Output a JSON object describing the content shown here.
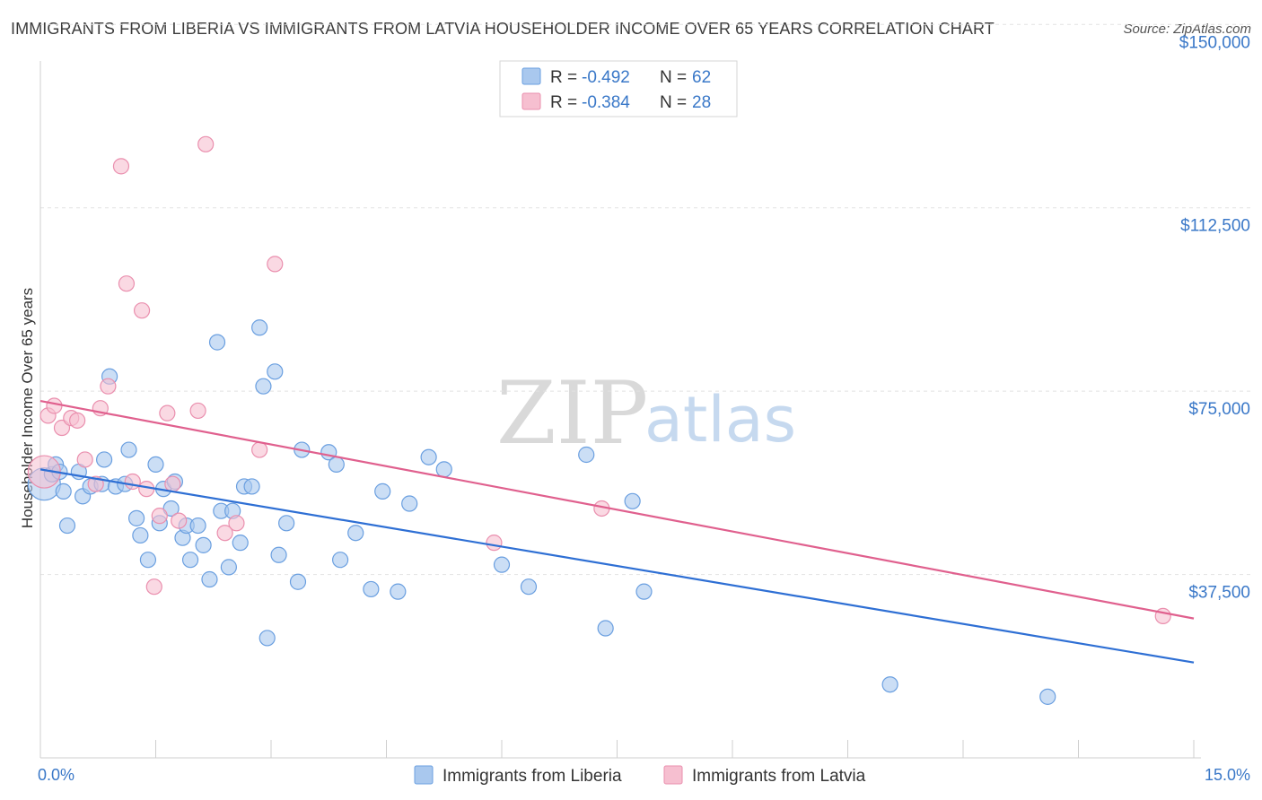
{
  "title": "IMMIGRANTS FROM LIBERIA VS IMMIGRANTS FROM LATVIA HOUSEHOLDER INCOME OVER 65 YEARS CORRELATION CHART",
  "source": "Source: ZipAtlas.com",
  "watermark": {
    "zip": "ZIP",
    "atlas": "atlas"
  },
  "legend": {
    "r_label": "R =",
    "n_label": "N =",
    "liberia": {
      "r": "-0.492",
      "n": "62"
    },
    "latvia": {
      "r": "-0.384",
      "n": "28"
    }
  },
  "colors": {
    "liberia_fill": "#a9c8ee",
    "liberia_stroke": "#6a9fe0",
    "liberia_line": "#2e6fd4",
    "latvia_fill": "#f6bfd0",
    "latvia_stroke": "#ea8fae",
    "latvia_line": "#e0608e",
    "grid": "#e2e2e2",
    "axis_label": "#3a78c8"
  },
  "chart_data": {
    "type": "scatter",
    "title": "IMMIGRANTS FROM LIBERIA VS IMMIGRANTS FROM LATVIA HOUSEHOLDER INCOME OVER 65 YEARS CORRELATION CHART",
    "xlabel": "",
    "ylabel": "Householder Income Over 65 years",
    "xlim": [
      0,
      15
    ],
    "ylim": [
      0,
      155000
    ],
    "x_tick_labels": [
      {
        "value": 0,
        "label": "0.0%"
      },
      {
        "value": 15,
        "label": "15.0%"
      }
    ],
    "y_ticks": [
      {
        "value": 37500,
        "label": "$37,500"
      },
      {
        "value": 75000,
        "label": "$75,000"
      },
      {
        "value": 112500,
        "label": "$112,500"
      },
      {
        "value": 150000,
        "label": "$150,000"
      }
    ],
    "legend_position": "top-center",
    "series": [
      {
        "name": "Immigrants from Liberia",
        "key": "liberia",
        "trend": {
          "x0": 0,
          "y0": 59000,
          "x1": 15,
          "y1": 19500
        },
        "points": [
          {
            "x": 0.05,
            "y": 56000,
            "big": true
          },
          {
            "x": 0.15,
            "y": 58000
          },
          {
            "x": 0.2,
            "y": 60000
          },
          {
            "x": 0.25,
            "y": 58500
          },
          {
            "x": 0.3,
            "y": 54500
          },
          {
            "x": 0.35,
            "y": 47500
          },
          {
            "x": 0.5,
            "y": 58500
          },
          {
            "x": 0.55,
            "y": 53500
          },
          {
            "x": 0.65,
            "y": 55500
          },
          {
            "x": 0.8,
            "y": 56000
          },
          {
            "x": 0.83,
            "y": 61000
          },
          {
            "x": 0.9,
            "y": 78000
          },
          {
            "x": 0.98,
            "y": 55500
          },
          {
            "x": 1.1,
            "y": 56000
          },
          {
            "x": 1.15,
            "y": 63000
          },
          {
            "x": 1.25,
            "y": 49000
          },
          {
            "x": 1.3,
            "y": 45500
          },
          {
            "x": 1.4,
            "y": 40500
          },
          {
            "x": 1.5,
            "y": 60000
          },
          {
            "x": 1.55,
            "y": 48000
          },
          {
            "x": 1.6,
            "y": 55000
          },
          {
            "x": 1.7,
            "y": 51000
          },
          {
            "x": 1.75,
            "y": 56500
          },
          {
            "x": 1.85,
            "y": 45000
          },
          {
            "x": 1.9,
            "y": 47500
          },
          {
            "x": 1.95,
            "y": 40500
          },
          {
            "x": 2.05,
            "y": 47500
          },
          {
            "x": 2.12,
            "y": 43500
          },
          {
            "x": 2.2,
            "y": 36500
          },
          {
            "x": 2.3,
            "y": 85000
          },
          {
            "x": 2.35,
            "y": 50500
          },
          {
            "x": 2.45,
            "y": 39000
          },
          {
            "x": 2.5,
            "y": 50500
          },
          {
            "x": 2.6,
            "y": 44000
          },
          {
            "x": 2.65,
            "y": 55500
          },
          {
            "x": 2.75,
            "y": 55500
          },
          {
            "x": 2.85,
            "y": 88000
          },
          {
            "x": 2.9,
            "y": 76000
          },
          {
            "x": 2.95,
            "y": 24500
          },
          {
            "x": 3.05,
            "y": 79000
          },
          {
            "x": 3.1,
            "y": 41500
          },
          {
            "x": 3.2,
            "y": 48000
          },
          {
            "x": 3.35,
            "y": 36000
          },
          {
            "x": 3.4,
            "y": 63000
          },
          {
            "x": 3.75,
            "y": 62500
          },
          {
            "x": 3.85,
            "y": 60000
          },
          {
            "x": 3.9,
            "y": 40500
          },
          {
            "x": 4.1,
            "y": 46000
          },
          {
            "x": 4.3,
            "y": 34500
          },
          {
            "x": 4.45,
            "y": 54500
          },
          {
            "x": 4.65,
            "y": 34000
          },
          {
            "x": 4.8,
            "y": 52000
          },
          {
            "x": 5.05,
            "y": 61500
          },
          {
            "x": 5.25,
            "y": 59000
          },
          {
            "x": 6.0,
            "y": 39500
          },
          {
            "x": 6.35,
            "y": 35000
          },
          {
            "x": 7.1,
            "y": 62000
          },
          {
            "x": 7.35,
            "y": 26500
          },
          {
            "x": 7.7,
            "y": 52500
          },
          {
            "x": 7.85,
            "y": 34000
          },
          {
            "x": 11.05,
            "y": 15000
          },
          {
            "x": 13.1,
            "y": 12500
          }
        ]
      },
      {
        "name": "Immigrants from Latvia",
        "key": "latvia",
        "trend": {
          "x0": 0,
          "y0": 73000,
          "x1": 15,
          "y1": 28500
        },
        "points": [
          {
            "x": 0.05,
            "y": 58500,
            "big": true
          },
          {
            "x": 0.1,
            "y": 70000
          },
          {
            "x": 0.18,
            "y": 72000
          },
          {
            "x": 0.28,
            "y": 67500
          },
          {
            "x": 0.4,
            "y": 69500
          },
          {
            "x": 0.48,
            "y": 69000
          },
          {
            "x": 0.58,
            "y": 61000
          },
          {
            "x": 0.72,
            "y": 56000
          },
          {
            "x": 0.78,
            "y": 71500
          },
          {
            "x": 0.88,
            "y": 76000
          },
          {
            "x": 1.05,
            "y": 121000
          },
          {
            "x": 1.12,
            "y": 97000
          },
          {
            "x": 1.2,
            "y": 56500
          },
          {
            "x": 1.32,
            "y": 91500
          },
          {
            "x": 1.38,
            "y": 55000
          },
          {
            "x": 1.48,
            "y": 35000
          },
          {
            "x": 1.55,
            "y": 49500
          },
          {
            "x": 1.65,
            "y": 70500
          },
          {
            "x": 1.72,
            "y": 56000
          },
          {
            "x": 1.8,
            "y": 48500
          },
          {
            "x": 2.05,
            "y": 71000
          },
          {
            "x": 2.15,
            "y": 125500
          },
          {
            "x": 2.4,
            "y": 46000
          },
          {
            "x": 2.55,
            "y": 48000
          },
          {
            "x": 2.85,
            "y": 63000
          },
          {
            "x": 3.05,
            "y": 101000
          },
          {
            "x": 5.9,
            "y": 44000
          },
          {
            "x": 7.3,
            "y": 51000
          },
          {
            "x": 14.6,
            "y": 29000
          }
        ]
      }
    ]
  },
  "bottom_legend": {
    "liberia": "Immigrants from Liberia",
    "latvia": "Immigrants from Latvia"
  }
}
